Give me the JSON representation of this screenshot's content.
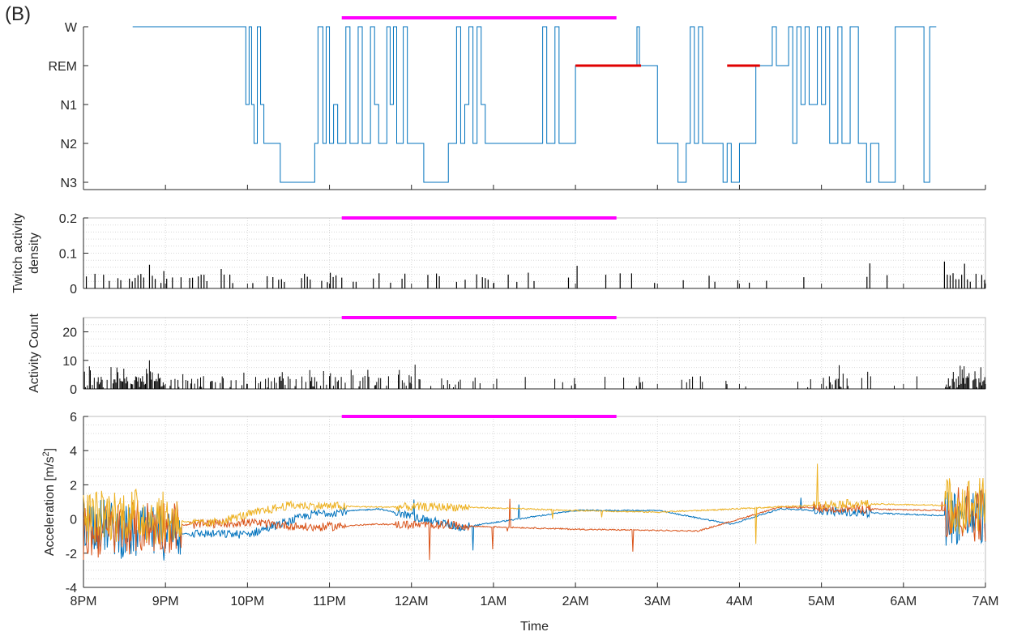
{
  "figure": {
    "panel_label": "(B)",
    "xlabel": "Time",
    "colors": {
      "hypnogram": "#0072BD",
      "rem": "#E00000",
      "marker": "#FF00FF",
      "bars": "#000000",
      "accel_x": "#0072BD",
      "accel_y": "#D95319",
      "accel_z": "#EDB120",
      "grid": "#d9d9d9",
      "axis": "#262626"
    }
  },
  "chart_data": [
    {
      "type": "line",
      "id": "hypnogram",
      "ylabel": "",
      "y_categories": [
        "W",
        "REM",
        "N1",
        "N2",
        "N3"
      ],
      "x_ticks": [
        "8PM",
        "9PM",
        "10PM",
        "11PM",
        "12AM",
        "1AM",
        "2AM",
        "3AM",
        "4AM",
        "5AM",
        "6AM",
        "7AM"
      ],
      "xlim_hours": [
        0,
        11
      ],
      "marker_bar": {
        "x": [
          3.15,
          6.5
        ],
        "value": "W"
      },
      "rem_segments": [
        [
          6.0,
          6.8
        ],
        [
          7.85,
          8.25
        ]
      ],
      "steps": [
        [
          0.6,
          "W"
        ],
        [
          1.0,
          "W"
        ],
        [
          1.9,
          "W"
        ],
        [
          1.98,
          "N1"
        ],
        [
          2.02,
          "W"
        ],
        [
          2.05,
          "N1"
        ],
        [
          2.08,
          "N2"
        ],
        [
          2.12,
          "W"
        ],
        [
          2.16,
          "N1"
        ],
        [
          2.2,
          "N2"
        ],
        [
          2.4,
          "N3"
        ],
        [
          2.82,
          "N2"
        ],
        [
          2.86,
          "W"
        ],
        [
          2.92,
          "N2"
        ],
        [
          2.96,
          "W"
        ],
        [
          3.0,
          "N2"
        ],
        [
          3.05,
          "N1"
        ],
        [
          3.1,
          "N2"
        ],
        [
          3.2,
          "W"
        ],
        [
          3.25,
          "N2"
        ],
        [
          3.35,
          "W"
        ],
        [
          3.4,
          "N2"
        ],
        [
          3.5,
          "W"
        ],
        [
          3.55,
          "N1"
        ],
        [
          3.6,
          "N2"
        ],
        [
          3.7,
          "W"
        ],
        [
          3.74,
          "N1"
        ],
        [
          3.78,
          "W"
        ],
        [
          3.82,
          "N2"
        ],
        [
          3.9,
          "W"
        ],
        [
          3.95,
          "N2"
        ],
        [
          4.15,
          "N3"
        ],
        [
          4.45,
          "N2"
        ],
        [
          4.55,
          "W"
        ],
        [
          4.6,
          "N2"
        ],
        [
          4.65,
          "N1"
        ],
        [
          4.7,
          "W"
        ],
        [
          4.75,
          "N2"
        ],
        [
          4.8,
          "W"
        ],
        [
          4.85,
          "N1"
        ],
        [
          4.9,
          "N2"
        ],
        [
          5.6,
          "W"
        ],
        [
          5.65,
          "N2"
        ],
        [
          5.75,
          "W"
        ],
        [
          5.8,
          "N2"
        ],
        [
          6.0,
          "REM"
        ],
        [
          6.75,
          "W"
        ],
        [
          6.78,
          "REM"
        ],
        [
          7.0,
          "N2"
        ],
        [
          7.25,
          "N3"
        ],
        [
          7.35,
          "N2"
        ],
        [
          7.4,
          "W"
        ],
        [
          7.45,
          "N2"
        ],
        [
          7.5,
          "W"
        ],
        [
          7.55,
          "N2"
        ],
        [
          7.8,
          "N3"
        ],
        [
          7.85,
          "N2"
        ],
        [
          7.9,
          "N3"
        ],
        [
          8.0,
          "N2"
        ],
        [
          8.2,
          "REM"
        ],
        [
          8.4,
          "W"
        ],
        [
          8.45,
          "REM"
        ],
        [
          8.6,
          "W"
        ],
        [
          8.65,
          "N2"
        ],
        [
          8.7,
          "W"
        ],
        [
          8.75,
          "N1"
        ],
        [
          8.8,
          "W"
        ],
        [
          8.85,
          "N1"
        ],
        [
          8.95,
          "W"
        ],
        [
          9.0,
          "N1"
        ],
        [
          9.05,
          "W"
        ],
        [
          9.1,
          "N2"
        ],
        [
          9.2,
          "W"
        ],
        [
          9.25,
          "N2"
        ],
        [
          9.35,
          "W"
        ],
        [
          9.45,
          "N2"
        ],
        [
          9.55,
          "N3"
        ],
        [
          9.6,
          "N2"
        ],
        [
          9.7,
          "N3"
        ],
        [
          9.9,
          "W"
        ]
      ]
    },
    {
      "type": "bar",
      "id": "twitch",
      "ylabel": "Twitch activity density",
      "ylim": [
        0,
        0.2
      ],
      "y_ticks": [
        "0",
        "0.1",
        "0.2"
      ],
      "marker_bar": {
        "x": [
          3.15,
          6.5
        ],
        "value": 0.2
      }
    },
    {
      "type": "bar",
      "id": "activity",
      "ylabel": "Activity Count",
      "ylim": [
        0,
        25
      ],
      "y_ticks": [
        "0",
        "10",
        "20"
      ],
      "marker_bar": {
        "x": [
          3.15,
          6.5
        ],
        "value": 25
      }
    },
    {
      "type": "line",
      "id": "acceleration",
      "ylabel_main": "Acceleration [m/s",
      "ylabel_sup": "2",
      "ylabel_close": "]",
      "ylim": [
        -4,
        6
      ],
      "y_ticks": [
        "-4",
        "-2",
        "0",
        "2",
        "4",
        "6"
      ],
      "marker_bar": {
        "x": [
          3.15,
          6.5
        ],
        "value": 6
      },
      "series": [
        {
          "color": "#0072BD"
        },
        {
          "color": "#D95319"
        },
        {
          "color": "#EDB120"
        }
      ]
    }
  ]
}
